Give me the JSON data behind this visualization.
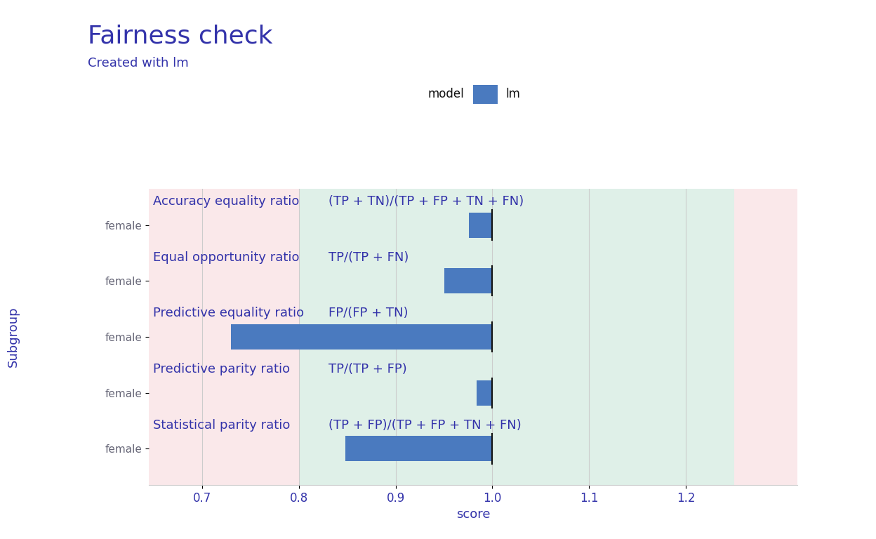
{
  "title": "Fairness check",
  "subtitle": "Created with lm",
  "model_name": "lm",
  "xlabel": "score",
  "ylabel": "Subgroup",
  "metrics": [
    {
      "name": "Accuracy equality ratio",
      "formula": "(TP + TN)/(TP + FP + TN + FN)",
      "subgroup": "female",
      "value": 0.976
    },
    {
      "name": "Equal opportunity ratio",
      "formula": "TP/(TP + FN)",
      "subgroup": "female",
      "value": 0.95
    },
    {
      "name": "Predictive equality ratio",
      "formula": "FP/(FP + TN)",
      "subgroup": "female",
      "value": 0.73
    },
    {
      "name": "Predictive parity ratio",
      "formula": "TP/(TP + FP)",
      "subgroup": "female",
      "value": 0.984
    },
    {
      "name": "Statistical parity ratio",
      "formula": "(TP + FP)/(TP + FP + TN + FN)",
      "subgroup": "female",
      "value": 0.848
    }
  ],
  "xlim": [
    0.645,
    1.315
  ],
  "xticks": [
    0.7,
    0.8,
    0.9,
    1.0,
    1.1,
    1.2
  ],
  "epsilon": 0.8,
  "one_over_epsilon": 1.25,
  "bar_color": "#4a7abf",
  "bar_height": 0.45,
  "green_band_color": "#dff0e8",
  "red_band_color": "#fae8ea",
  "title_color": "#3333aa",
  "subtitle_color": "#3333aa",
  "metric_label_color": "#3333aa",
  "axis_label_color": "#3333aa",
  "tick_label_color": "#3333aa",
  "subgroup_label_color": "#666677",
  "reference_line_color": "#111111",
  "grid_color": "#cccccc",
  "background_color": "#ffffff",
  "legend_label_color": "#111111",
  "title_fontsize": 26,
  "subtitle_fontsize": 13,
  "metric_label_fontsize": 13,
  "formula_fontsize": 13,
  "axis_label_fontsize": 13,
  "tick_fontsize": 12,
  "subgroup_fontsize": 11
}
